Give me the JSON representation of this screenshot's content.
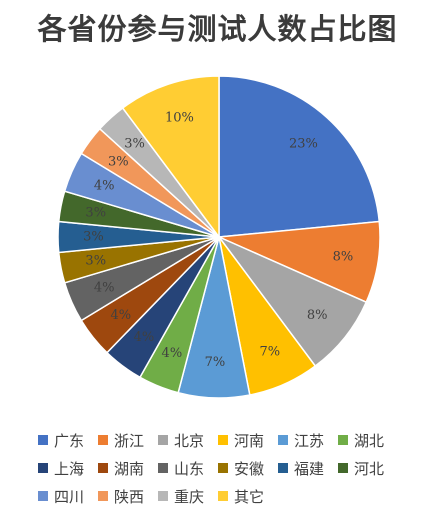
{
  "chart_data": {
    "type": "pie",
    "title": "各省份参与测试人数占比图",
    "categories": [
      "广东",
      "浙江",
      "北京",
      "河南",
      "江苏",
      "湖北",
      "上海",
      "湖南",
      "山东",
      "安徽",
      "福建",
      "河北",
      "四川",
      "陕西",
      "重庆",
      "其它"
    ],
    "values": [
      23,
      8,
      8,
      7,
      7,
      4,
      4,
      4,
      4,
      3,
      3,
      3,
      4,
      3,
      3,
      10
    ],
    "data_labels": [
      "23%",
      "8%",
      "8%",
      "7%",
      "7%",
      "4%",
      "4%",
      "4%",
      "4%",
      "3%",
      "3%",
      "3%",
      "4%",
      "3%",
      "3%",
      "10%"
    ],
    "colors": [
      "#4472C4",
      "#ED7D31",
      "#A5A5A5",
      "#FFC000",
      "#5B9BD5",
      "#70AD47",
      "#264478",
      "#9E480E",
      "#636363",
      "#997300",
      "#255E91",
      "#43682B",
      "#698ED0",
      "#F1975A",
      "#B7B7B7",
      "#FFCD33"
    ],
    "legend_position": "bottom"
  }
}
